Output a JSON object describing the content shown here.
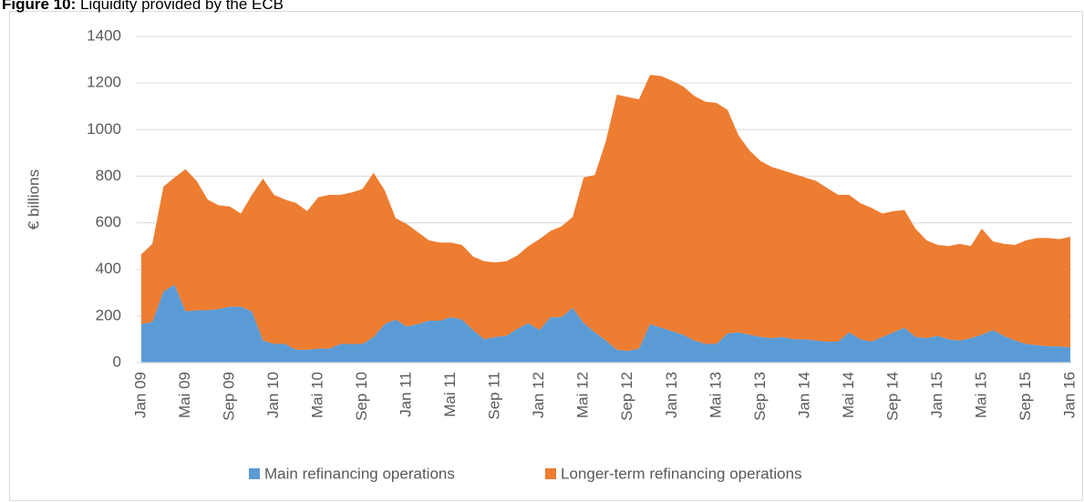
{
  "chart_data": {
    "type": "stacked_area",
    "title_label": "Figure 10:",
    "title": "Liquidity provided by the ECB",
    "ylabel": "€ billions",
    "categories": [
      "Jan 09",
      null,
      null,
      null,
      "Mai 09",
      null,
      null,
      null,
      "Sep 09",
      null,
      null,
      null,
      "Jan 10",
      null,
      null,
      null,
      "Mai 10",
      null,
      null,
      null,
      "Sep 10",
      null,
      null,
      null,
      "Jan 11",
      null,
      null,
      null,
      "Mai 11",
      null,
      null,
      null,
      "Sep 11",
      null,
      null,
      null,
      "Jan 12",
      null,
      null,
      null,
      "Mai 12",
      null,
      null,
      null,
      "Sep 12",
      null,
      null,
      null,
      "Jan 13",
      null,
      null,
      null,
      "Mai 13",
      null,
      null,
      null,
      "Sep 13",
      null,
      null,
      null,
      "Jan 14",
      null,
      null,
      null,
      "Mai 14",
      null,
      null,
      null,
      "Sep 14",
      null,
      null,
      null,
      "Jan 15",
      null,
      null,
      null,
      "Mai 15",
      null,
      null,
      null,
      "Sep 15",
      null,
      null,
      null,
      "Jan 16"
    ],
    "series": [
      {
        "name": "Main refinancing operations",
        "color": "#5b9bd5",
        "values": [
          165,
          175,
          305,
          335,
          220,
          225,
          225,
          230,
          240,
          240,
          220,
          95,
          80,
          80,
          55,
          55,
          60,
          60,
          80,
          80,
          80,
          110,
          165,
          185,
          155,
          165,
          180,
          180,
          195,
          185,
          140,
          100,
          110,
          115,
          145,
          170,
          140,
          195,
          195,
          235,
          170,
          130,
          95,
          55,
          50,
          60,
          165,
          150,
          135,
          120,
          95,
          80,
          80,
          125,
          130,
          120,
          110,
          105,
          110,
          100,
          100,
          95,
          90,
          90,
          130,
          100,
          90,
          110,
          130,
          150,
          110,
          105,
          115,
          100,
          95,
          105,
          120,
          140,
          115,
          95,
          80,
          75,
          70,
          70,
          65
        ]
      },
      {
        "name": "Longer-term refinancing operations",
        "color": "#ed7d31",
        "values": [
          300,
          335,
          450,
          460,
          610,
          555,
          475,
          445,
          430,
          400,
          500,
          695,
          640,
          620,
          630,
          595,
          650,
          660,
          640,
          650,
          665,
          705,
          575,
          435,
          440,
          395,
          345,
          335,
          320,
          320,
          315,
          335,
          320,
          320,
          315,
          330,
          390,
          370,
          390,
          390,
          625,
          675,
          855,
          1095,
          1090,
          1070,
          1070,
          1080,
          1075,
          1065,
          1050,
          1040,
          1035,
          960,
          845,
          790,
          755,
          735,
          715,
          710,
          695,
          685,
          660,
          630,
          590,
          585,
          575,
          530,
          520,
          505,
          465,
          420,
          390,
          400,
          415,
          395,
          455,
          380,
          395,
          410,
          445,
          460,
          465,
          460,
          475
        ]
      }
    ],
    "ylim": [
      0,
      1400
    ],
    "yticks": [
      0,
      200,
      400,
      600,
      800,
      1000,
      1200,
      1400
    ],
    "grid": true,
    "legend": "bottom"
  }
}
